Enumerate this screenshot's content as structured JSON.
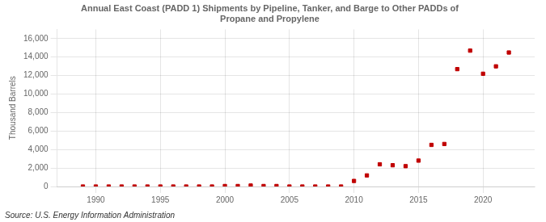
{
  "chart_data": {
    "type": "scatter",
    "title": "Annual East Coast (PADD 1) Shipments by Pipeline, Tanker, and Barge to Other PADDs of\nPropane and Propylene",
    "ylabel": "Thousand Barrels",
    "source": "Source: U.S. Energy Information Administration",
    "color": "#c00000",
    "marker": "square",
    "grid": true,
    "x": [
      1989,
      1990,
      1991,
      1992,
      1993,
      1994,
      1995,
      1996,
      1997,
      1998,
      1999,
      2000,
      2001,
      2002,
      2003,
      2004,
      2005,
      2006,
      2007,
      2008,
      2009,
      2010,
      2011,
      2012,
      2013,
      2014,
      2015,
      2016,
      2017,
      2018,
      2019,
      2020,
      2021,
      2022
    ],
    "values": [
      0,
      0,
      0,
      0,
      0,
      0,
      0,
      0,
      0,
      0,
      0,
      50,
      50,
      100,
      50,
      50,
      0,
      0,
      0,
      0,
      0,
      600,
      1200,
      2400,
      2300,
      2200,
      2800,
      4500,
      4600,
      12700,
      14700,
      12200,
      13000,
      14500
    ],
    "xlim": [
      1987,
      2024
    ],
    "xticks": [
      1990,
      1995,
      2000,
      2005,
      2010,
      2015,
      2020
    ],
    "ylim": [
      0,
      17000
    ],
    "yticks": [
      0,
      {
        "value": 2000,
        "label": "2,000"
      },
      {
        "value": 4000,
        "label": "4,000"
      },
      {
        "value": 6000,
        "label": "6,000"
      },
      {
        "value": 8000,
        "label": "8,000"
      },
      {
        "value": 10000,
        "label": "10,000"
      },
      {
        "value": 12000,
        "label": "12,000"
      },
      {
        "value": 14000,
        "label": "14,000"
      },
      {
        "value": 16000,
        "label": "16,000"
      }
    ]
  }
}
